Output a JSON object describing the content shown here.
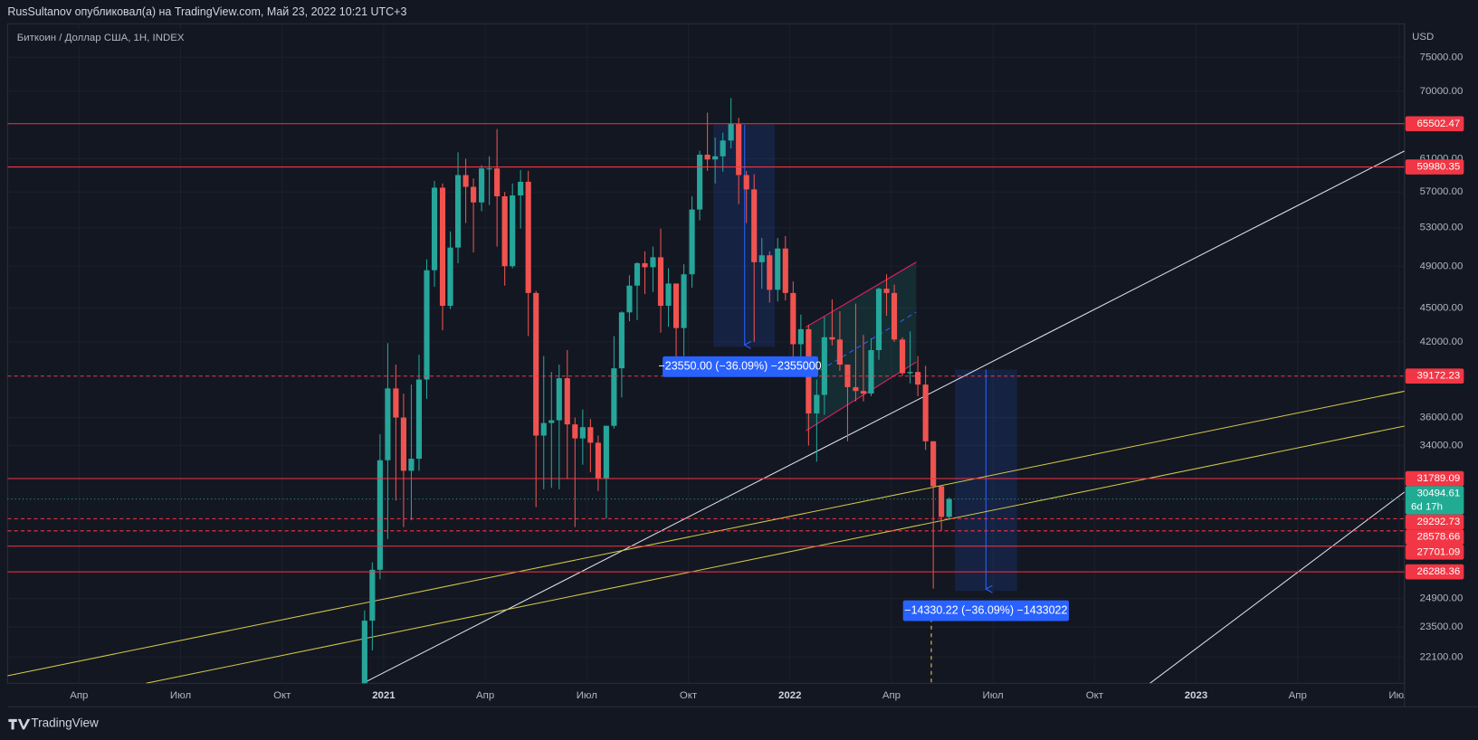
{
  "header": {
    "published": "RusSultanov опубликовал(а) на TradingView.com, Май 23, 2022 10:21 UTC+3"
  },
  "footer": {
    "brand": "TradingView"
  },
  "chart_data": {
    "type": "candlestick",
    "title": "Биткоин / Доллар США, 1Н, INDEX",
    "y_unit": "USD",
    "log_scale": true,
    "grid": true,
    "up_color": "#26a69a",
    "down_color": "#ef5350",
    "xlim": [
      2020.074,
      2023.513
    ],
    "ylim": [
      20950,
      80300
    ],
    "xticks": [
      {
        "value": 2020.25,
        "label": "Апр"
      },
      {
        "value": 2020.5,
        "label": "Июл"
      },
      {
        "value": 2020.75,
        "label": "Окт"
      },
      2021,
      {
        "value": 2021.25,
        "label": "Апр"
      },
      {
        "value": 2021.5,
        "label": "Июл"
      },
      {
        "value": 2021.75,
        "label": "Окт"
      },
      2022,
      {
        "value": 2022.25,
        "label": "Апр"
      },
      {
        "value": 2022.5,
        "label": "Июл"
      },
      {
        "value": 2022.75,
        "label": "Окт"
      },
      2023,
      {
        "value": 2023.25,
        "label": "Апр"
      },
      {
        "value": 2023.5,
        "label": "Июл"
      }
    ],
    "yticks": [
      {
        "value": 75000,
        "label": "75000.00"
      },
      {
        "value": 70000,
        "label": "70000.00"
      },
      {
        "value": 61000,
        "label": "61000.00"
      },
      {
        "value": 57000,
        "label": "57000.00"
      },
      {
        "value": 53000,
        "label": "53000.00"
      },
      {
        "value": 49000,
        "label": "49000.00"
      },
      {
        "value": 45000,
        "label": "45000.00"
      },
      {
        "value": 42000,
        "label": "42000.00"
      },
      {
        "value": 36000,
        "label": "36000.00"
      },
      {
        "value": 34000,
        "label": "34000.00"
      },
      {
        "value": 24900,
        "label": "24900.00"
      },
      {
        "value": 23500,
        "label": "23500.00"
      },
      {
        "value": 22100,
        "label": "22100.00"
      }
    ],
    "x": [
      2020.953,
      2020.972,
      2020.991,
      2021.01,
      2021.03,
      2021.049,
      2021.068,
      2021.087,
      2021.106,
      2021.125,
      2021.145,
      2021.164,
      2021.183,
      2021.202,
      2021.221,
      2021.241,
      2021.26,
      2021.279,
      2021.298,
      2021.317,
      2021.337,
      2021.356,
      2021.375,
      2021.394,
      2021.413,
      2021.432,
      2021.452,
      2021.471,
      2021.49,
      2021.509,
      2021.528,
      2021.548,
      2021.567,
      2021.586,
      2021.605,
      2021.624,
      2021.643,
      2021.663,
      2021.682,
      2021.701,
      2021.72,
      2021.739,
      2021.759,
      2021.778,
      2021.797,
      2021.816,
      2021.835,
      2021.855,
      2021.874,
      2021.893,
      2021.912,
      2021.931,
      2021.95,
      2021.97,
      2021.989,
      2022.008,
      2022.027,
      2022.046,
      2022.066,
      2022.085,
      2022.104,
      2022.123,
      2022.142,
      2022.162,
      2022.181,
      2022.2,
      2022.219,
      2022.238,
      2022.257,
      2022.277,
      2022.296,
      2022.315,
      2022.334,
      2022.353,
      2022.373,
      2022.392
    ],
    "open": [
      19270,
      23800,
      26400,
      33000,
      38200,
      36000,
      32300,
      33100,
      38900,
      48600,
      57500,
      45200,
      50900,
      59000,
      57600,
      55800,
      59800,
      59800,
      56500,
      49000,
      56600,
      58200,
      46400,
      34700,
      35600,
      35800,
      39000,
      35500,
      34500,
      35300,
      34200,
      31800,
      35400,
      39800,
      44600,
      47100,
      49300,
      48900,
      49900,
      45200,
      47300,
      43200,
      48200,
      55000,
      61500,
      60900,
      61300,
      63300,
      65500,
      59000,
      57300,
      49400,
      50100,
      46700,
      50800,
      46400,
      41800,
      43100,
      36300,
      37700,
      42400,
      42200,
      40100,
      38300,
      38000,
      37800,
      41300,
      46800,
      46400,
      42200,
      39400,
      39500,
      38500,
      34300,
      31300,
      29400
    ],
    "high": [
      24300,
      26800,
      34800,
      41900,
      40100,
      37800,
      38500,
      40900,
      49700,
      58300,
      58000,
      52600,
      61800,
      61000,
      58600,
      60200,
      61300,
      64800,
      57000,
      58000,
      59600,
      59500,
      46600,
      40800,
      39500,
      40100,
      41300,
      36000,
      36600,
      35900,
      34700,
      35400,
      42500,
      44700,
      48100,
      49400,
      50500,
      51000,
      52900,
      48800,
      47300,
      49200,
      56500,
      62000,
      67000,
      63700,
      64300,
      69000,
      66300,
      59500,
      59100,
      51900,
      50500,
      51900,
      52100,
      47500,
      44400,
      43500,
      38900,
      44200,
      45800,
      44700,
      40100,
      45400,
      42600,
      42300,
      46900,
      48200,
      47200,
      42400,
      42900,
      40800,
      40000,
      34300,
      31300,
      30600
    ],
    "low": [
      19000,
      22400,
      25900,
      28100,
      30400,
      28800,
      29200,
      32300,
      37400,
      47000,
      43000,
      44900,
      49300,
      53500,
      50400,
      54800,
      55500,
      51000,
      47100,
      48800,
      52900,
      42500,
      30000,
      31100,
      31200,
      31100,
      31800,
      28800,
      32700,
      32200,
      31000,
      29300,
      35200,
      37500,
      43800,
      43900,
      46300,
      46500,
      42800,
      43300,
      39600,
      40800,
      46900,
      53800,
      59500,
      58000,
      59400,
      62300,
      55600,
      53500,
      42000,
      46800,
      45500,
      45600,
      45700,
      39600,
      39900,
      34000,
      32900,
      36200,
      41700,
      39600,
      34300,
      37200,
      37200,
      37600,
      40500,
      44300,
      42000,
      39200,
      38600,
      37600,
      33700,
      25400,
      28600,
      29300
    ],
    "close": [
      23800,
      26400,
      33000,
      38200,
      36000,
      32300,
      33100,
      38900,
      48600,
      57500,
      45200,
      50900,
      59000,
      57600,
      55800,
      59800,
      59800,
      56500,
      49000,
      56600,
      58200,
      46400,
      34700,
      35600,
      35800,
      39000,
      35500,
      34500,
      35300,
      34200,
      31800,
      35400,
      39800,
      44600,
      47100,
      49300,
      48900,
      49900,
      45200,
      47300,
      43200,
      48200,
      55000,
      61500,
      60900,
      61300,
      63300,
      65500,
      59000,
      57300,
      49400,
      50100,
      46700,
      50800,
      46400,
      41800,
      43100,
      36300,
      37700,
      42400,
      42200,
      40100,
      38300,
      38000,
      37800,
      41300,
      46800,
      46400,
      42200,
      39400,
      39500,
      38500,
      34300,
      31300,
      29400,
      30494.61
    ],
    "levels": [
      {
        "price": 65502.47,
        "style": "solid",
        "color": "#f23645"
      },
      {
        "price": 59980.35,
        "style": "solid",
        "color": "#f23645"
      },
      {
        "price": 39172.23,
        "style": "dashed",
        "color": "#f23645"
      },
      {
        "price": 31789.09,
        "style": "solid",
        "color": "#f23645"
      },
      {
        "price": 29292.73,
        "style": "dashed",
        "color": "#f23645"
      },
      {
        "price": 28578.66,
        "style": "dashed",
        "color": "#f23645"
      },
      {
        "price": 27701.09,
        "style": "solid",
        "color": "#f23645"
      },
      {
        "price": 26288.36,
        "style": "solid",
        "color": "#f23645"
      }
    ],
    "last": {
      "price": 30494.61,
      "countdown": "6d 17h",
      "color": "#22ab94"
    },
    "annotations": [
      {
        "text": "−23550.00 (−36.09%) −2355000"
      },
      {
        "text": "−14330.22 (−36.09%) −1433022"
      }
    ]
  }
}
